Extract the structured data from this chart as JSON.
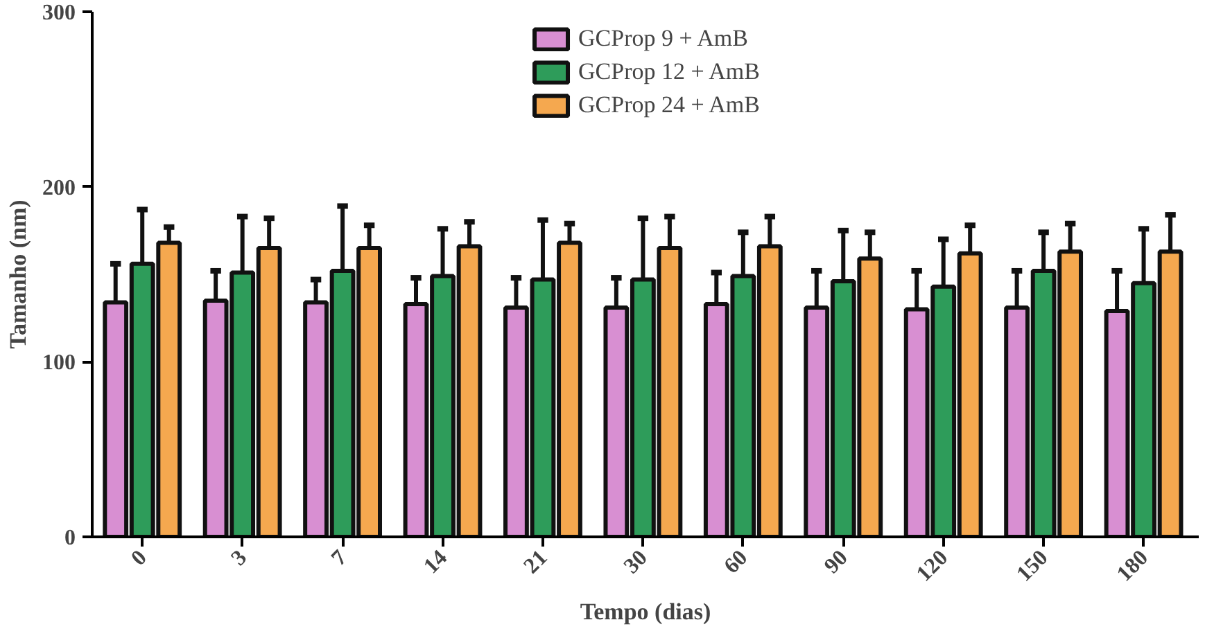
{
  "chart_data": {
    "type": "bar",
    "xlabel": "Tempo (dias)",
    "ylabel": "Tamanho (nm)",
    "categories": [
      "0",
      "3",
      "7",
      "14",
      "21",
      "30",
      "60",
      "90",
      "120",
      "150",
      "180"
    ],
    "ylim": [
      0,
      300
    ],
    "yticks": [
      0,
      100,
      200,
      300
    ],
    "grid": false,
    "legend": "top",
    "series": [
      {
        "name": "GCProp 9 + AmB",
        "color": "#d88fd2",
        "values": [
          134,
          135,
          134,
          133,
          131,
          131,
          133,
          131,
          130,
          131,
          129
        ],
        "errors": [
          22,
          17,
          13,
          15,
          17,
          17,
          18,
          21,
          22,
          21,
          23
        ]
      },
      {
        "name": "GCProp 12 + AmB",
        "color": "#2e9c5a",
        "values": [
          156,
          151,
          152,
          149,
          147,
          147,
          149,
          146,
          143,
          152,
          145
        ],
        "errors": [
          31,
          32,
          37,
          27,
          34,
          35,
          25,
          29,
          27,
          22,
          31
        ]
      },
      {
        "name": "GCProp 24 + AmB",
        "color": "#f5a84f",
        "values": [
          168,
          165,
          165,
          166,
          168,
          165,
          166,
          159,
          162,
          163,
          163
        ],
        "errors": [
          9,
          17,
          13,
          14,
          11,
          18,
          17,
          15,
          16,
          16,
          21
        ]
      }
    ]
  }
}
